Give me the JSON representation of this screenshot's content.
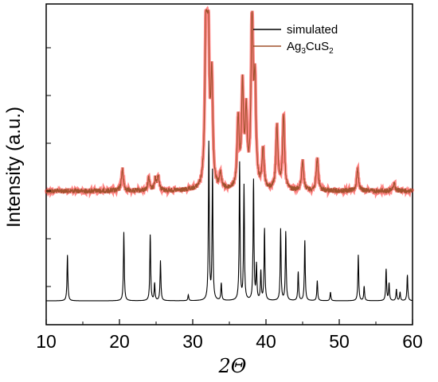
{
  "chart_data": {
    "type": "line",
    "xlabel": "2Θ",
    "ylabel": "Intensity (a.u.)",
    "xlim": [
      10,
      60
    ],
    "x_ticks": [
      "10",
      "20",
      "30",
      "40",
      "50",
      "60"
    ],
    "grid": false,
    "legend_position": "top-right",
    "legend": [
      {
        "text": "simulated",
        "color": "#000000"
      },
      {
        "text": "Ag",
        "sub1": "3",
        "mid": "CuS",
        "sub2": "2",
        "color": "#a0522d"
      }
    ],
    "series": [
      {
        "name": "Ag3CuS2",
        "color": "#a0522d",
        "glow_color": "#ff2020",
        "baseline": 0.0,
        "peaks": [
          {
            "x": 20.4,
            "height": 0.12
          },
          {
            "x": 24.0,
            "height": 0.07
          },
          {
            "x": 24.9,
            "height": 0.06
          },
          {
            "x": 25.3,
            "height": 0.08
          },
          {
            "x": 31.8,
            "height": 0.85
          },
          {
            "x": 32.1,
            "height": 1.0
          },
          {
            "x": 32.6,
            "height": 0.6
          },
          {
            "x": 33.8,
            "height": 0.08
          },
          {
            "x": 36.2,
            "height": 0.38
          },
          {
            "x": 36.8,
            "height": 0.56
          },
          {
            "x": 37.3,
            "height": 0.4
          },
          {
            "x": 38.1,
            "height": 1.0
          },
          {
            "x": 38.5,
            "height": 0.55
          },
          {
            "x": 39.6,
            "height": 0.22
          },
          {
            "x": 41.5,
            "height": 0.35
          },
          {
            "x": 42.4,
            "height": 0.42
          },
          {
            "x": 45.0,
            "height": 0.17
          },
          {
            "x": 47.0,
            "height": 0.18
          },
          {
            "x": 52.5,
            "height": 0.12
          },
          {
            "x": 57.5,
            "height": 0.04
          }
        ]
      },
      {
        "name": "simulated",
        "color": "#000000",
        "baseline": 0.0,
        "peaks": [
          {
            "x": 12.9,
            "height": 0.16
          },
          {
            "x": 20.6,
            "height": 0.24
          },
          {
            "x": 24.2,
            "height": 0.23
          },
          {
            "x": 24.8,
            "height": 0.06
          },
          {
            "x": 25.6,
            "height": 0.14
          },
          {
            "x": 29.4,
            "height": 0.02
          },
          {
            "x": 32.2,
            "height": 0.55
          },
          {
            "x": 32.7,
            "height": 0.45
          },
          {
            "x": 33.9,
            "height": 0.06
          },
          {
            "x": 36.4,
            "height": 0.48
          },
          {
            "x": 37.0,
            "height": 0.4
          },
          {
            "x": 38.3,
            "height": 0.42
          },
          {
            "x": 38.7,
            "height": 0.12
          },
          {
            "x": 39.3,
            "height": 0.1
          },
          {
            "x": 39.8,
            "height": 0.25
          },
          {
            "x": 42.0,
            "height": 0.25
          },
          {
            "x": 42.7,
            "height": 0.24
          },
          {
            "x": 44.4,
            "height": 0.1
          },
          {
            "x": 45.3,
            "height": 0.21
          },
          {
            "x": 47.0,
            "height": 0.07
          },
          {
            "x": 48.8,
            "height": 0.03
          },
          {
            "x": 52.6,
            "height": 0.16
          },
          {
            "x": 53.4,
            "height": 0.05
          },
          {
            "x": 56.4,
            "height": 0.11
          },
          {
            "x": 56.8,
            "height": 0.06
          },
          {
            "x": 57.8,
            "height": 0.04
          },
          {
            "x": 58.3,
            "height": 0.03
          },
          {
            "x": 59.3,
            "height": 0.09
          }
        ]
      }
    ]
  }
}
